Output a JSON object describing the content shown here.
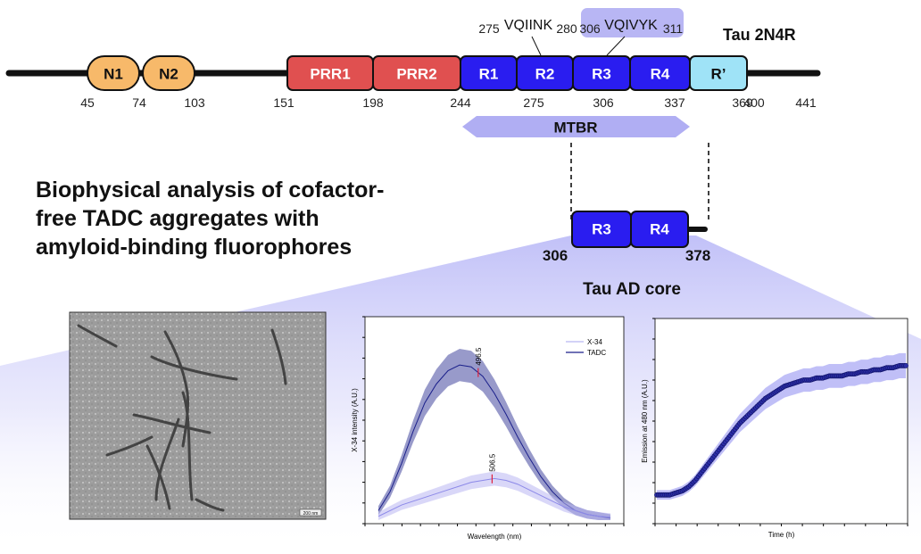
{
  "protein": {
    "name": "Tau 2N4R",
    "domains": [
      {
        "id": "n1",
        "label": "N1",
        "color": "#f7b96a"
      },
      {
        "id": "n2",
        "label": "N2",
        "color": "#f7b96a"
      },
      {
        "id": "prr1",
        "label": "PRR1",
        "color": "#e05050"
      },
      {
        "id": "prr2",
        "label": "PRR2",
        "color": "#e05050"
      },
      {
        "id": "r1",
        "label": "R1",
        "color": "#2a1df0"
      },
      {
        "id": "r2",
        "label": "R2",
        "color": "#2a1df0"
      },
      {
        "id": "r3",
        "label": "R3",
        "color": "#2a1df0"
      },
      {
        "id": "r4",
        "label": "R4",
        "color": "#2a1df0"
      },
      {
        "id": "rprime",
        "label": "R’",
        "color": "#9fe3f7"
      }
    ],
    "positions": [
      "45",
      "74",
      "103",
      "151",
      "198",
      "244",
      "275",
      "306",
      "337",
      "369",
      "400",
      "441"
    ],
    "motif1": {
      "start": "275",
      "seq": "VQIINK",
      "end": "280"
    },
    "motif2": {
      "start": "306",
      "seq": "VQIVYK",
      "end": "311"
    },
    "mtbr_label": "MTBR"
  },
  "core": {
    "r3": "R3",
    "r4": "R4",
    "start": "306",
    "end": "378",
    "label": "Tau AD core"
  },
  "heading_lines": [
    "Biophysical analysis of cofactor-",
    "free TADC aggregates with",
    "amyloid-binding fluorophores"
  ],
  "em_image": {
    "scale_label": "200 nm"
  },
  "chart_data": [
    {
      "type": "line",
      "xlabel": "Wavelength (nm)",
      "ylabel": "X-34 intensity (A.U.)",
      "series": [
        {
          "name": "X-34",
          "color": "#b9b6f2",
          "peak_label": "506.5",
          "peak_x": 0.49,
          "values": [
            0.02,
            0.05,
            0.08,
            0.1,
            0.12,
            0.14,
            0.16,
            0.18,
            0.2,
            0.21,
            0.22,
            0.21,
            0.19,
            0.16,
            0.13,
            0.1,
            0.07,
            0.05,
            0.03,
            0.02,
            0.015
          ]
        },
        {
          "name": "TADC",
          "color": "#1a1f8a",
          "peak_label": "496.5",
          "peak_x": 0.43,
          "values": [
            0.05,
            0.15,
            0.3,
            0.47,
            0.62,
            0.72,
            0.79,
            0.82,
            0.81,
            0.76,
            0.67,
            0.56,
            0.44,
            0.33,
            0.23,
            0.15,
            0.09,
            0.05,
            0.03,
            0.02,
            0.01
          ]
        }
      ]
    },
    {
      "type": "scatter",
      "xlabel": "Time (h)",
      "ylabel": "Emission at 480 nm (A.U.)",
      "series": [
        {
          "name": "",
          "color": "#1a1f8a",
          "values": [
            0.14,
            0.14,
            0.14,
            0.15,
            0.16,
            0.18,
            0.21,
            0.25,
            0.29,
            0.33,
            0.37,
            0.41,
            0.45,
            0.49,
            0.52,
            0.55,
            0.58,
            0.61,
            0.63,
            0.65,
            0.67,
            0.68,
            0.69,
            0.7,
            0.7,
            0.71,
            0.71,
            0.72,
            0.72,
            0.72,
            0.73,
            0.73,
            0.74,
            0.74,
            0.75,
            0.75,
            0.76,
            0.76,
            0.77,
            0.77
          ]
        }
      ]
    }
  ]
}
